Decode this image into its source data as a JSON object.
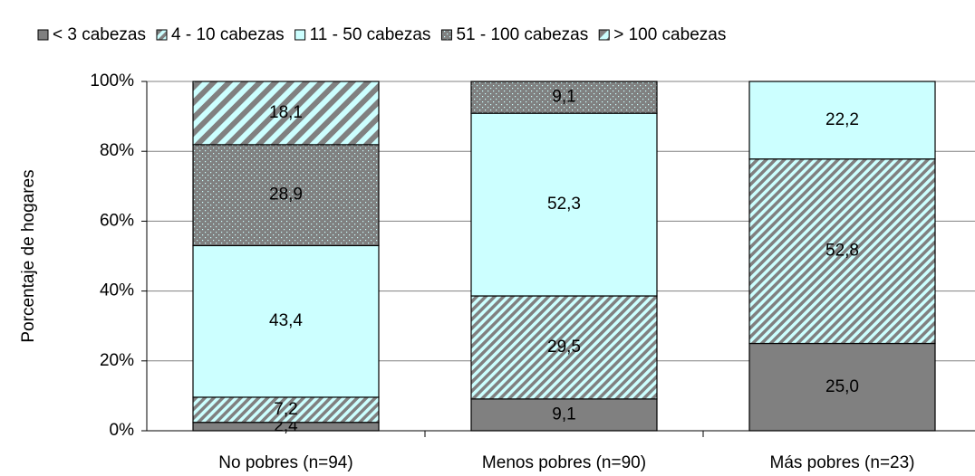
{
  "chart_data": {
    "type": "stacked_bar",
    "y_label": "Porcentaje de hogares",
    "categories": [
      "No pobres (n=94)",
      "Menos pobres (n=90)",
      "Más pobres (n=23)"
    ],
    "series": [
      {
        "name": "< 3 cabezas",
        "color": "#808080",
        "pattern": "solid",
        "values": [
          2.4,
          9.1,
          25.0
        ],
        "value_labels": [
          "2,4",
          "9,1",
          "25,0"
        ]
      },
      {
        "name": "4 - 10 cabezas",
        "color": "#ccffff",
        "pattern": "diagonal-gray",
        "values": [
          7.2,
          29.5,
          52.8
        ],
        "value_labels": [
          "7,2",
          "29,5",
          "52,8"
        ]
      },
      {
        "name": "11 - 50 cabezas",
        "color": "#ccffff",
        "pattern": "solid",
        "values": [
          43.4,
          52.3,
          22.2
        ],
        "value_labels": [
          "43,4",
          "52,3",
          "22,2"
        ]
      },
      {
        "name": "51 - 100 cabezas",
        "color": "#808080",
        "pattern": "dots",
        "values": [
          28.9,
          9.1,
          null
        ],
        "value_labels": [
          "28,9",
          "9,1",
          null
        ]
      },
      {
        "name": "> 100 cabezas",
        "color": "#ccffff",
        "pattern": "diagonal-wide",
        "values": [
          18.1,
          null,
          null
        ],
        "value_labels": [
          "18,1",
          null,
          null
        ]
      }
    ],
    "ylim": [
      0,
      100
    ],
    "yticks": [
      {
        "value": 0,
        "label": "0%"
      },
      {
        "value": 20,
        "label": "20%"
      },
      {
        "value": 40,
        "label": "40%"
      },
      {
        "value": 60,
        "label": "60%"
      },
      {
        "value": 80,
        "label": "80%"
      },
      {
        "value": 100,
        "label": "100%"
      }
    ],
    "grid": true,
    "legend": "top"
  }
}
